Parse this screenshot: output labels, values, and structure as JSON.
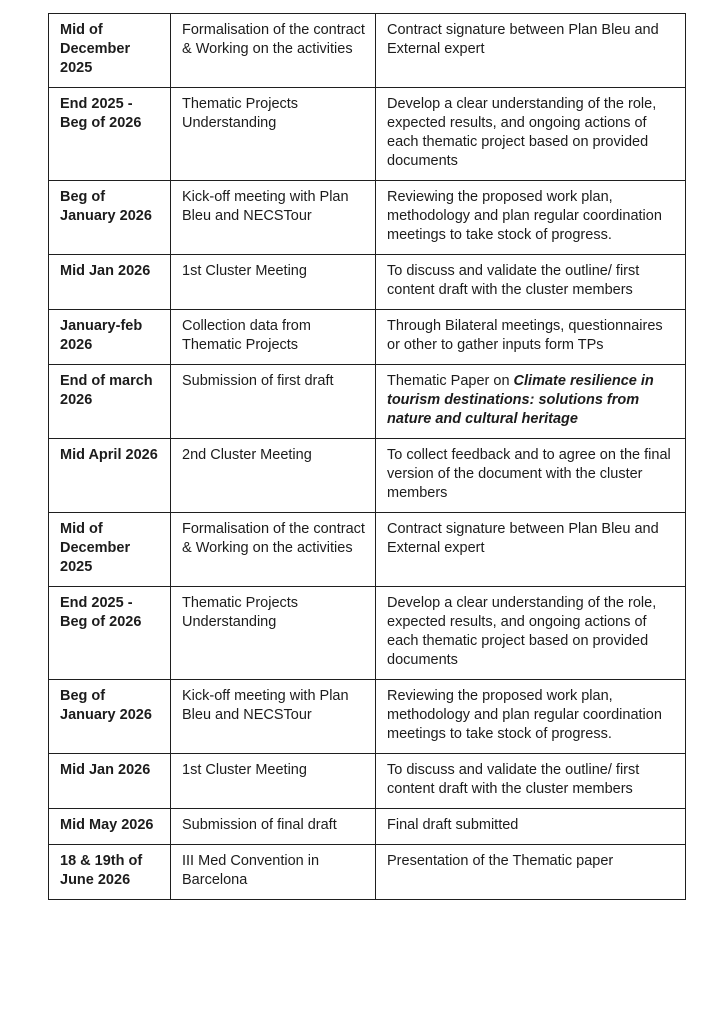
{
  "colors": {
    "background": "#ffffff",
    "text": "#1c1c1c",
    "border": "#1f1f1f"
  },
  "table": {
    "columns": [
      "date",
      "activity",
      "detail"
    ],
    "rows": [
      {
        "date": "Mid of December 2025",
        "activity": "Formalisation of the contract & Working on the activities",
        "detail": "Contract signature between Plan Bleu and External expert"
      },
      {
        "date": "End 2025 - Beg of 2026",
        "activity": "Thematic Projects Understanding",
        "detail": "Develop a clear understanding of the role, expected results, and ongoing actions of each thematic project based on provided documents"
      },
      {
        "date": "Beg of January 2026",
        "activity": "Kick-off meeting with Plan Bleu and NECSTour",
        "detail": "Reviewing the proposed work plan, methodology and plan regular coordination meetings to take stock of progress."
      },
      {
        "date": "Mid  Jan 2026",
        "activity": "1st Cluster Meeting",
        "detail": "To discuss and validate the outline/ first content draft with the cluster members"
      },
      {
        "date": "January-feb 2026",
        "activity": "Collection data from Thematic Projects",
        "detail": "Through Bilateral meetings, questionnaires or other to gather inputs form TPs"
      },
      {
        "date": "End of march 2026",
        "activity": "Submission of first draft",
        "detail": {
          "prefix": "Thematic Paper on ",
          "emphasis": "Climate resilience in tourism destinations: solutions from nature and cultural heritage"
        }
      },
      {
        "date": "Mid April 2026",
        "activity": "2nd Cluster Meeting",
        "detail": "To collect feedback and to agree on the final version of the document with the cluster members"
      },
      {
        "date": "Mid of December 2025",
        "activity": "Formalisation of the contract & Working on the activities",
        "detail": "Contract signature between Plan Bleu and External expert"
      },
      {
        "date": "End 2025 - Beg of 2026",
        "activity": "Thematic Projects Understanding",
        "detail": "Develop a clear understanding of the role, expected results, and ongoing actions of each thematic project based on provided documents"
      },
      {
        "date": "Beg of January 2026",
        "activity": "Kick-off meeting with Plan Bleu and NECSTour",
        "detail": "Reviewing the proposed work plan, methodology and plan regular coordination meetings to take stock of progress."
      },
      {
        "date": "Mid  Jan 2026",
        "activity": "1st Cluster Meeting",
        "detail": "To discuss and validate the outline/ first content draft with the cluster members"
      },
      {
        "date": "Mid May 2026",
        "activity": "Submission of final draft",
        "detail": "Final draft submitted"
      },
      {
        "date": "18 & 19th of June 2026",
        "activity": "III Med Convention in Barcelona",
        "detail": "Presentation of the Thematic paper"
      }
    ]
  }
}
